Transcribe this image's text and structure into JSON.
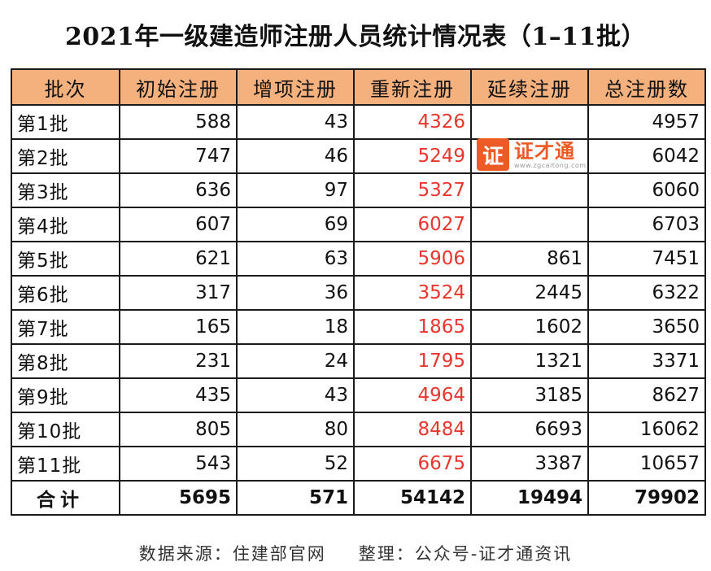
{
  "title": "2021年一级建造师注册人员统计情况表（1–11批）",
  "columns": [
    "批次",
    "初始注册",
    "增项注册",
    "重新注册",
    "延续注册",
    "总注册数"
  ],
  "rows": [
    {
      "batch": "第1批",
      "initial": "588",
      "added": "43",
      "renewed": "4326",
      "extended": "",
      "total": "4957"
    },
    {
      "batch": "第2批",
      "initial": "747",
      "added": "46",
      "renewed": "5249",
      "extended": "",
      "total": "6042"
    },
    {
      "batch": "第3批",
      "initial": "636",
      "added": "97",
      "renewed": "5327",
      "extended": "",
      "total": "6060"
    },
    {
      "batch": "第4批",
      "initial": "607",
      "added": "69",
      "renewed": "6027",
      "extended": "",
      "total": "6703"
    },
    {
      "batch": "第5批",
      "initial": "621",
      "added": "63",
      "renewed": "5906",
      "extended": "861",
      "total": "7451"
    },
    {
      "batch": "第6批",
      "initial": "317",
      "added": "36",
      "renewed": "3524",
      "extended": "2445",
      "total": "6322"
    },
    {
      "batch": "第7批",
      "initial": "165",
      "added": "18",
      "renewed": "1865",
      "extended": "1602",
      "total": "3650"
    },
    {
      "batch": "第8批",
      "initial": "231",
      "added": "24",
      "renewed": "1795",
      "extended": "1321",
      "total": "3371"
    },
    {
      "batch": "第9批",
      "initial": "435",
      "added": "43",
      "renewed": "4964",
      "extended": "3185",
      "total": "8627"
    },
    {
      "batch": "第10批",
      "initial": "805",
      "added": "80",
      "renewed": "8484",
      "extended": "6693",
      "total": "16062"
    },
    {
      "batch": "第11批",
      "initial": "543",
      "added": "52",
      "renewed": "6675",
      "extended": "3387",
      "total": "10657"
    }
  ],
  "totals": {
    "label": "合计",
    "initial": "5695",
    "added": "571",
    "renewed": "54142",
    "extended": "19494",
    "total": "79902"
  },
  "footer": {
    "source": "数据来源：住建部官网",
    "compiler": "整理：公众号-证才通资讯"
  },
  "watermark": {
    "logo_char": "证",
    "name": "证才通",
    "url": "www.zgcaitong.com"
  },
  "colors": {
    "header_bg": "#f4b17e",
    "renewed_text": "#e8362d",
    "watermark": "#ec5a25"
  }
}
